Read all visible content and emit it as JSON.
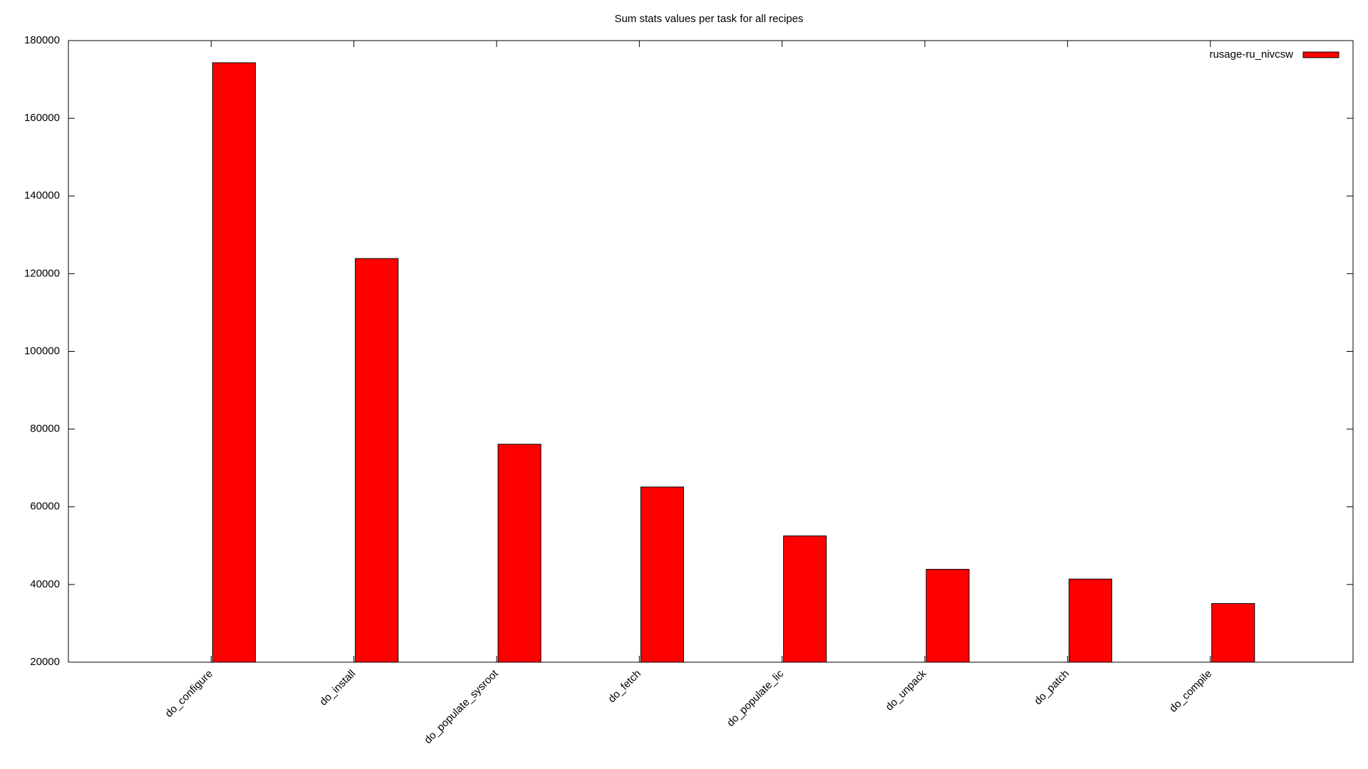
{
  "chart_data": {
    "type": "bar",
    "title": "Sum stats values per task for all recipes",
    "categories": [
      "do_configure",
      "do_install",
      "do_populate_sysroot",
      "do_fetch",
      "do_populate_lic",
      "do_unpack",
      "do_patch",
      "do_compile"
    ],
    "series": [
      {
        "name": "rusage-ru_nivcsw",
        "color": "#ff0000",
        "values": [
          174300,
          123900,
          76100,
          65100,
          52500,
          43900,
          41400,
          35100
        ]
      }
    ],
    "ylim": [
      20000,
      180000
    ],
    "yticks": [
      20000,
      40000,
      60000,
      80000,
      100000,
      120000,
      140000,
      160000,
      180000
    ],
    "legend": "top-right"
  }
}
